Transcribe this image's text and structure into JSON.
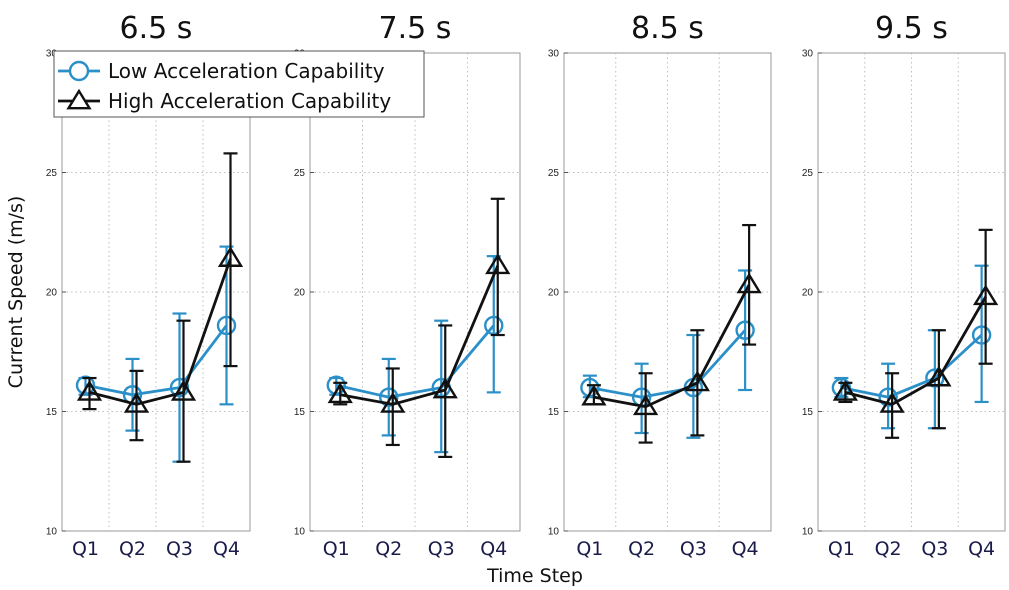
{
  "chart_data": {
    "type": "line",
    "xlabel": "Time Step",
    "ylabel": "Current Speed (m/s)",
    "categories": [
      "Q1",
      "Q2",
      "Q3",
      "Q4"
    ],
    "ylim": [
      10,
      30
    ],
    "yticks": [
      "10",
      "15",
      "20",
      "25",
      "30"
    ],
    "grid": true,
    "legend": {
      "placement": "top-left",
      "entries": [
        {
          "name": "Low Acceleration Capability",
          "marker": "circle",
          "color": "#2b8fc8"
        },
        {
          "name": "High Acceleration Capability",
          "marker": "triangle",
          "color": "#111111"
        }
      ]
    },
    "panels": [
      {
        "title": "6.5 s",
        "series": [
          {
            "name": "Low Acceleration Capability",
            "values": [
              16.1,
              15.7,
              16.0,
              18.6
            ],
            "err_low": [
              15.7,
              14.2,
              12.9,
              15.3
            ],
            "err_high": [
              16.4,
              17.2,
              19.1,
              21.9
            ]
          },
          {
            "name": "High Acceleration Capability",
            "values": [
              15.8,
              15.3,
              15.8,
              21.4
            ],
            "err_low": [
              15.1,
              13.8,
              12.9,
              16.9
            ],
            "err_high": [
              16.4,
              16.7,
              18.8,
              25.8
            ]
          }
        ]
      },
      {
        "title": "7.5 s",
        "series": [
          {
            "name": "Low Acceleration Capability",
            "values": [
              16.1,
              15.6,
              16.0,
              18.6
            ],
            "err_low": [
              15.7,
              14.0,
              13.3,
              15.8
            ],
            "err_high": [
              16.4,
              17.2,
              18.8,
              21.5
            ]
          },
          {
            "name": "High Acceleration Capability",
            "values": [
              15.7,
              15.3,
              15.9,
              21.1
            ],
            "err_low": [
              15.3,
              13.6,
              13.1,
              18.2
            ],
            "err_high": [
              16.2,
              16.8,
              18.6,
              23.9
            ]
          }
        ]
      },
      {
        "title": "8.5 s",
        "series": [
          {
            "name": "Low Acceleration Capability",
            "values": [
              16.0,
              15.6,
              16.0,
              18.4
            ],
            "err_low": [
              15.6,
              14.1,
              13.9,
              15.9
            ],
            "err_high": [
              16.5,
              17.0,
              18.2,
              20.9
            ]
          },
          {
            "name": "High Acceleration Capability",
            "values": [
              15.6,
              15.2,
              16.2,
              20.3
            ],
            "err_low": [
              15.3,
              13.7,
              14.0,
              17.8
            ],
            "err_high": [
              16.1,
              16.6,
              18.4,
              22.8
            ]
          }
        ]
      },
      {
        "title": "9.5 s",
        "series": [
          {
            "name": "Low Acceleration Capability",
            "values": [
              16.0,
              15.6,
              16.4,
              18.2
            ],
            "err_low": [
              15.6,
              14.3,
              14.3,
              15.4
            ],
            "err_high": [
              16.4,
              17.0,
              18.4,
              21.1
            ]
          },
          {
            "name": "High Acceleration Capability",
            "values": [
              15.8,
              15.3,
              16.4,
              19.8
            ],
            "err_low": [
              15.4,
              13.9,
              14.3,
              17.0
            ],
            "err_high": [
              16.2,
              16.6,
              18.4,
              22.6
            ]
          }
        ]
      }
    ]
  }
}
